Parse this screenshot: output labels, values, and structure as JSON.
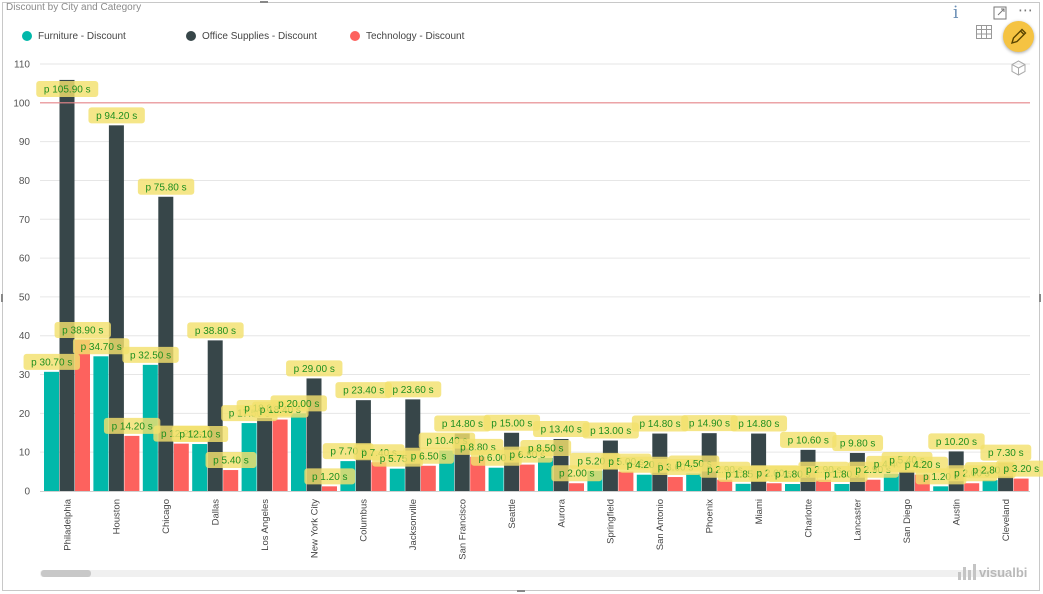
{
  "chart_data": {
    "type": "bar",
    "title": "Discount by City and Category",
    "categories": [
      "Philadelphia",
      "Houston",
      "Chicago",
      "Dallas",
      "Los Angeles",
      "New York City",
      "Columbus",
      "Jacksonville",
      "San Francisco",
      "Seattle",
      "Aurora",
      "Springfield",
      "San Antonio",
      "Phoenix",
      "Miami",
      "Charlotte",
      "Lancaster",
      "San Diego",
      "Austin",
      "Cleveland"
    ],
    "series": [
      {
        "name": "Furniture - Discount",
        "color": "#01b8aa",
        "values": [
          30.7,
          34.7,
          32.5,
          12.1,
          17.5,
          20.0,
          7.7,
          5.75,
          10.4,
          6.0,
          8.5,
          5.2,
          4.2,
          4.5,
          1.85,
          1.8,
          1.8,
          4.4,
          1.2,
          2.8
        ]
      },
      {
        "name": "Office Supplies - Discount",
        "color": "#374649",
        "values": [
          105.9,
          94.2,
          75.8,
          38.8,
          18.8,
          29.0,
          23.4,
          23.6,
          14.8,
          15.0,
          13.4,
          13.0,
          14.8,
          14.9,
          14.8,
          10.6,
          9.8,
          5.4,
          10.2,
          7.3
        ]
      },
      {
        "name": "Technology - Discount",
        "color": "#fd625e",
        "values": [
          38.9,
          14.2,
          12.2,
          5.4,
          18.4,
          1.2,
          7.4,
          6.5,
          8.8,
          6.8,
          2.0,
          5.0,
          3.6,
          2.9,
          2.0,
          2.9,
          2.9,
          4.2,
          2.0,
          3.2
        ]
      }
    ],
    "yticks": [
      0,
      10,
      20,
      30,
      40,
      50,
      60,
      70,
      80,
      90,
      100,
      110
    ],
    "ylim": [
      0,
      110
    ],
    "reference_line": {
      "value": 100,
      "color": "#e8878c"
    },
    "data_label_prefix": "p ",
    "data_label_suffix": " s",
    "legend_position": "top-left",
    "grid": true
  },
  "toolbar": {
    "info_icon": "info-icon",
    "focus_icon": "focus-mode-icon",
    "more_icon": "more-options-icon",
    "table_icon": "table-view-icon",
    "edit_icon": "pencil-icon",
    "cube_icon": "cube-icon",
    "more_label": "⋯",
    "info_label": "i"
  },
  "watermark": {
    "text": "visualbi"
  }
}
